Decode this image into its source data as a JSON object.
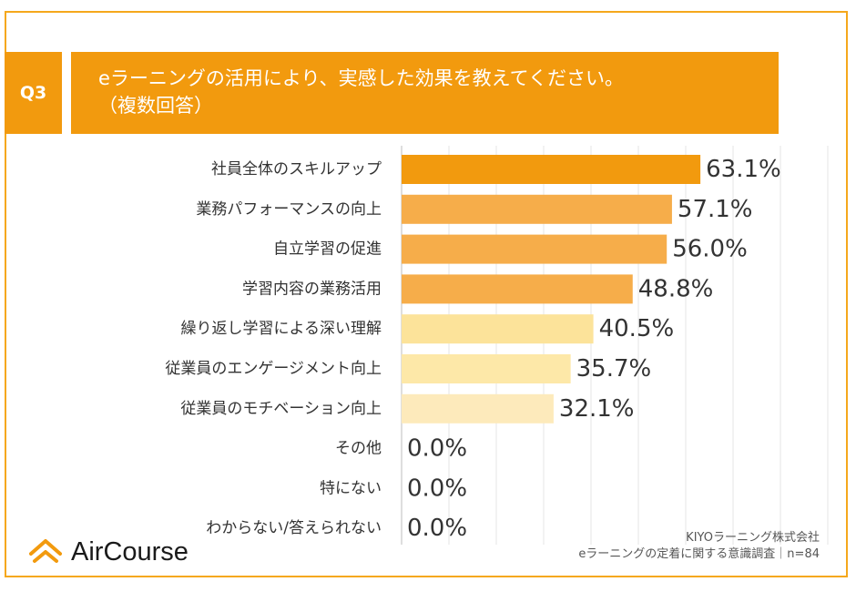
{
  "question": {
    "label": "Q3",
    "title_line1": "eラーニングの活用により、実感した効果を教えてください。",
    "title_line2": "（複数回答）"
  },
  "chart_data": {
    "type": "bar",
    "orientation": "horizontal",
    "categories": [
      "社員全体のスキルアップ",
      "業務パフォーマンスの向上",
      "自立学習の促進",
      "学習内容の業務活用",
      "繰り返し学習による深い理解",
      "従業員のエンゲージメント向上",
      "従業員のモチベーション向上",
      "その他",
      "特にない",
      "わからない/答えられない"
    ],
    "values": [
      63.1,
      57.1,
      56.0,
      48.8,
      40.5,
      35.7,
      32.1,
      0.0,
      0.0,
      0.0
    ],
    "value_labels": [
      "63.1%",
      "57.1%",
      "56.0%",
      "48.8%",
      "40.5%",
      "35.7%",
      "32.1%",
      "0.0%",
      "0.0%",
      "0.0%"
    ],
    "bar_colors": [
      "#f29a0e",
      "#f6ad4a",
      "#f6ad4a",
      "#f6ad4a",
      "#fce39a",
      "#fde8a8",
      "#fdeabb",
      "#f6ad4a",
      "#f6ad4a",
      "#f6ad4a"
    ],
    "xlim": [
      0,
      100
    ],
    "grid": true
  },
  "logo": {
    "text": "AirCourse",
    "color": "#f29a0e"
  },
  "credits": {
    "line1": "KIYOラーニング株式会社",
    "line2": "eラーニングの定着に関する意識調査｜n=84"
  }
}
